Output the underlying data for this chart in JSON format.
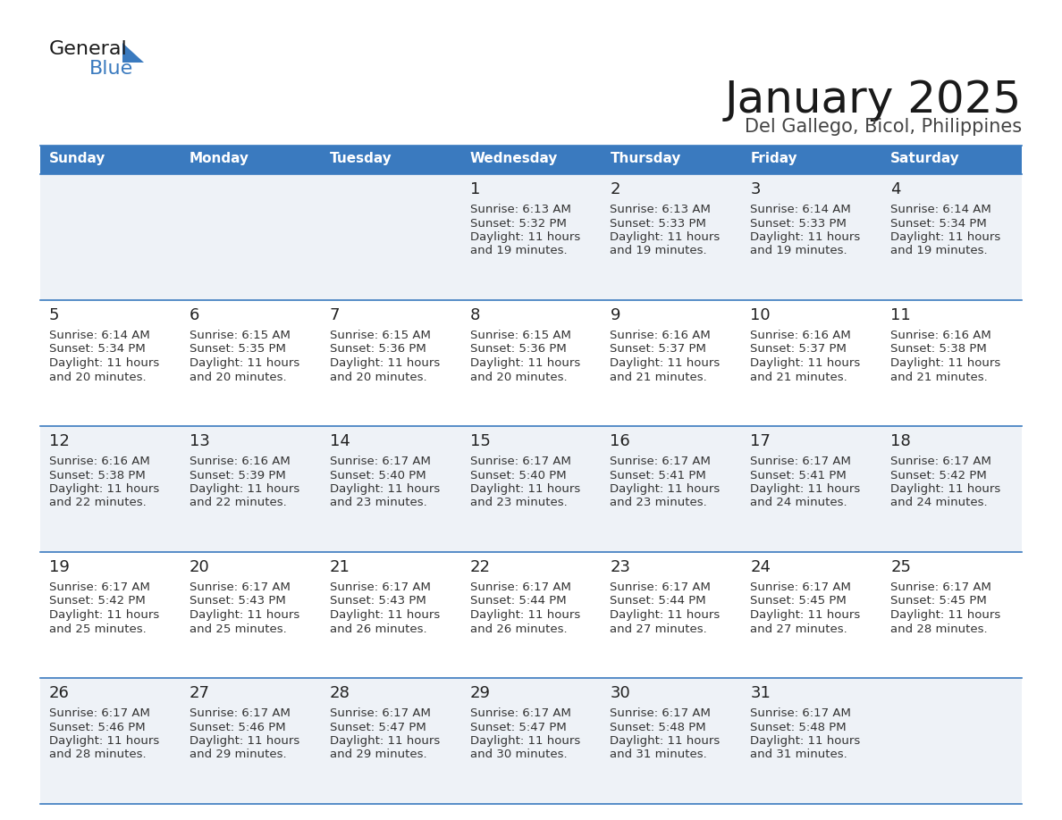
{
  "title": "January 2025",
  "subtitle": "Del Gallego, Bicol, Philippines",
  "header_color": "#3a7abf",
  "header_text_color": "#ffffff",
  "cell_bg_even": "#eef2f7",
  "cell_bg_odd": "#ffffff",
  "day_number_color": "#222222",
  "cell_text_color": "#333333",
  "separator_color": "#3a7abf",
  "days_of_week": [
    "Sunday",
    "Monday",
    "Tuesday",
    "Wednesday",
    "Thursday",
    "Friday",
    "Saturday"
  ],
  "calendar": [
    [
      {
        "day": "",
        "sunrise": "",
        "sunset": "",
        "daylight_h": "",
        "daylight_m": ""
      },
      {
        "day": "",
        "sunrise": "",
        "sunset": "",
        "daylight_h": "",
        "daylight_m": ""
      },
      {
        "day": "",
        "sunrise": "",
        "sunset": "",
        "daylight_h": "",
        "daylight_m": ""
      },
      {
        "day": "1",
        "sunrise": "6:13 AM",
        "sunset": "5:32 PM",
        "daylight_h": "11 hours",
        "daylight_m": "and 19 minutes."
      },
      {
        "day": "2",
        "sunrise": "6:13 AM",
        "sunset": "5:33 PM",
        "daylight_h": "11 hours",
        "daylight_m": "and 19 minutes."
      },
      {
        "day": "3",
        "sunrise": "6:14 AM",
        "sunset": "5:33 PM",
        "daylight_h": "11 hours",
        "daylight_m": "and 19 minutes."
      },
      {
        "day": "4",
        "sunrise": "6:14 AM",
        "sunset": "5:34 PM",
        "daylight_h": "11 hours",
        "daylight_m": "and 19 minutes."
      }
    ],
    [
      {
        "day": "5",
        "sunrise": "6:14 AM",
        "sunset": "5:34 PM",
        "daylight_h": "11 hours",
        "daylight_m": "and 20 minutes."
      },
      {
        "day": "6",
        "sunrise": "6:15 AM",
        "sunset": "5:35 PM",
        "daylight_h": "11 hours",
        "daylight_m": "and 20 minutes."
      },
      {
        "day": "7",
        "sunrise": "6:15 AM",
        "sunset": "5:36 PM",
        "daylight_h": "11 hours",
        "daylight_m": "and 20 minutes."
      },
      {
        "day": "8",
        "sunrise": "6:15 AM",
        "sunset": "5:36 PM",
        "daylight_h": "11 hours",
        "daylight_m": "and 20 minutes."
      },
      {
        "day": "9",
        "sunrise": "6:16 AM",
        "sunset": "5:37 PM",
        "daylight_h": "11 hours",
        "daylight_m": "and 21 minutes."
      },
      {
        "day": "10",
        "sunrise": "6:16 AM",
        "sunset": "5:37 PM",
        "daylight_h": "11 hours",
        "daylight_m": "and 21 minutes."
      },
      {
        "day": "11",
        "sunrise": "6:16 AM",
        "sunset": "5:38 PM",
        "daylight_h": "11 hours",
        "daylight_m": "and 21 minutes."
      }
    ],
    [
      {
        "day": "12",
        "sunrise": "6:16 AM",
        "sunset": "5:38 PM",
        "daylight_h": "11 hours",
        "daylight_m": "and 22 minutes."
      },
      {
        "day": "13",
        "sunrise": "6:16 AM",
        "sunset": "5:39 PM",
        "daylight_h": "11 hours",
        "daylight_m": "and 22 minutes."
      },
      {
        "day": "14",
        "sunrise": "6:17 AM",
        "sunset": "5:40 PM",
        "daylight_h": "11 hours",
        "daylight_m": "and 23 minutes."
      },
      {
        "day": "15",
        "sunrise": "6:17 AM",
        "sunset": "5:40 PM",
        "daylight_h": "11 hours",
        "daylight_m": "and 23 minutes."
      },
      {
        "day": "16",
        "sunrise": "6:17 AM",
        "sunset": "5:41 PM",
        "daylight_h": "11 hours",
        "daylight_m": "and 23 minutes."
      },
      {
        "day": "17",
        "sunrise": "6:17 AM",
        "sunset": "5:41 PM",
        "daylight_h": "11 hours",
        "daylight_m": "and 24 minutes."
      },
      {
        "day": "18",
        "sunrise": "6:17 AM",
        "sunset": "5:42 PM",
        "daylight_h": "11 hours",
        "daylight_m": "and 24 minutes."
      }
    ],
    [
      {
        "day": "19",
        "sunrise": "6:17 AM",
        "sunset": "5:42 PM",
        "daylight_h": "11 hours",
        "daylight_m": "and 25 minutes."
      },
      {
        "day": "20",
        "sunrise": "6:17 AM",
        "sunset": "5:43 PM",
        "daylight_h": "11 hours",
        "daylight_m": "and 25 minutes."
      },
      {
        "day": "21",
        "sunrise": "6:17 AM",
        "sunset": "5:43 PM",
        "daylight_h": "11 hours",
        "daylight_m": "and 26 minutes."
      },
      {
        "day": "22",
        "sunrise": "6:17 AM",
        "sunset": "5:44 PM",
        "daylight_h": "11 hours",
        "daylight_m": "and 26 minutes."
      },
      {
        "day": "23",
        "sunrise": "6:17 AM",
        "sunset": "5:44 PM",
        "daylight_h": "11 hours",
        "daylight_m": "and 27 minutes."
      },
      {
        "day": "24",
        "sunrise": "6:17 AM",
        "sunset": "5:45 PM",
        "daylight_h": "11 hours",
        "daylight_m": "and 27 minutes."
      },
      {
        "day": "25",
        "sunrise": "6:17 AM",
        "sunset": "5:45 PM",
        "daylight_h": "11 hours",
        "daylight_m": "and 28 minutes."
      }
    ],
    [
      {
        "day": "26",
        "sunrise": "6:17 AM",
        "sunset": "5:46 PM",
        "daylight_h": "11 hours",
        "daylight_m": "and 28 minutes."
      },
      {
        "day": "27",
        "sunrise": "6:17 AM",
        "sunset": "5:46 PM",
        "daylight_h": "11 hours",
        "daylight_m": "and 29 minutes."
      },
      {
        "day": "28",
        "sunrise": "6:17 AM",
        "sunset": "5:47 PM",
        "daylight_h": "11 hours",
        "daylight_m": "and 29 minutes."
      },
      {
        "day": "29",
        "sunrise": "6:17 AM",
        "sunset": "5:47 PM",
        "daylight_h": "11 hours",
        "daylight_m": "and 30 minutes."
      },
      {
        "day": "30",
        "sunrise": "6:17 AM",
        "sunset": "5:48 PM",
        "daylight_h": "11 hours",
        "daylight_m": "and 31 minutes."
      },
      {
        "day": "31",
        "sunrise": "6:17 AM",
        "sunset": "5:48 PM",
        "daylight_h": "11 hours",
        "daylight_m": "and 31 minutes."
      },
      {
        "day": "",
        "sunrise": "",
        "sunset": "",
        "daylight_h": "",
        "daylight_m": ""
      }
    ]
  ],
  "fig_width": 11.88,
  "fig_height": 9.18,
  "dpi": 100
}
